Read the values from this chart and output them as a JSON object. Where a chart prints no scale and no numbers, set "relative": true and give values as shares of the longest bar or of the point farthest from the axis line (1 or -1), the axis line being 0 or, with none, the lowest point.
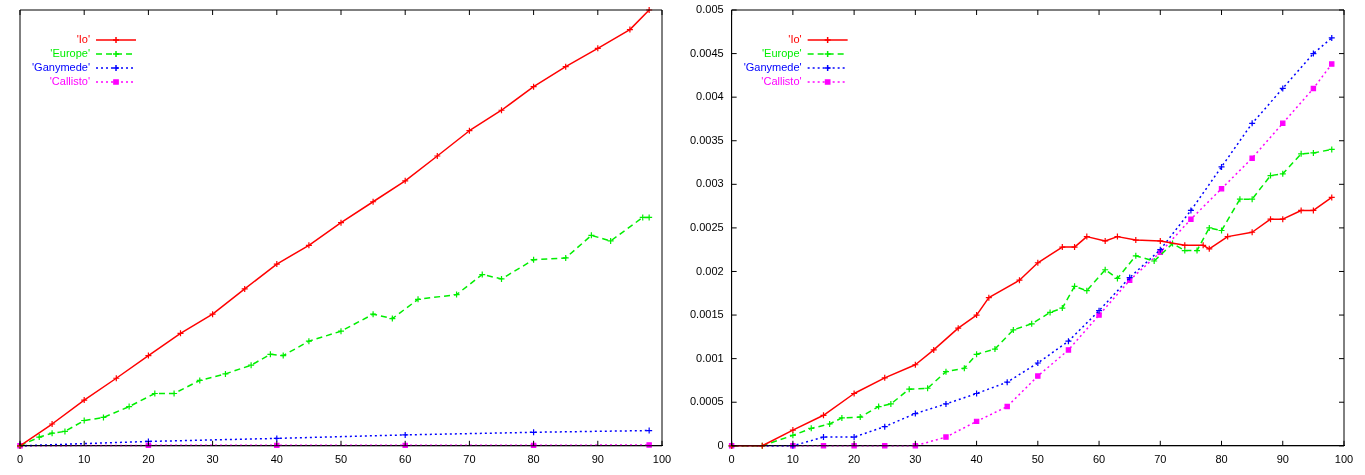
{
  "chart_data": [
    {
      "type": "line",
      "relative": true,
      "tick_labels": "x",
      "xlim": [
        0,
        100
      ],
      "xticks": [
        0,
        10,
        20,
        30,
        40,
        50,
        60,
        70,
        80,
        90,
        100
      ],
      "legend": "top left",
      "series": [
        {
          "name": "'Io'",
          "color": "#ff0000",
          "marker": "cross",
          "line_style": "solid",
          "x": [
            0,
            5,
            10,
            15,
            20,
            25,
            30,
            35,
            40,
            45,
            50,
            55,
            60,
            65,
            70,
            75,
            80,
            85,
            90,
            95,
            98
          ],
          "values": [
            0,
            0.05,
            0.105,
            0.155,
            0.207,
            0.258,
            0.302,
            0.36,
            0.417,
            0.46,
            0.512,
            0.56,
            0.608,
            0.665,
            0.723,
            0.77,
            0.824,
            0.87,
            0.912,
            0.955,
            1
          ]
        },
        {
          "name": "'Europe'",
          "color": "#00ee00",
          "marker": "cross",
          "line_style": "dashed",
          "x": [
            0,
            3,
            5,
            7,
            10,
            13,
            17,
            21,
            24,
            28,
            32,
            36,
            39,
            41,
            45,
            50,
            55,
            58,
            62,
            68,
            72,
            75,
            80,
            85,
            89,
            92,
            97,
            98
          ],
          "values": [
            0,
            0.02,
            0.029,
            0.033,
            0.058,
            0.065,
            0.09,
            0.12,
            0.12,
            0.15,
            0.165,
            0.185,
            0.21,
            0.207,
            0.24,
            0.263,
            0.302,
            0.292,
            0.336,
            0.347,
            0.393,
            0.383,
            0.427,
            0.431,
            0.483,
            0.47,
            0.524,
            0.524
          ]
        },
        {
          "name": "'Ganymede'",
          "color": "#0000ff",
          "marker": "cross",
          "line_style": "dotted",
          "x": [
            0,
            20,
            40,
            60,
            80,
            98
          ],
          "values": [
            0,
            0.01,
            0.017,
            0.025,
            0.031,
            0.035
          ]
        },
        {
          "name": "'Callisto'",
          "color": "#ff00ff",
          "marker": "square",
          "line_style": "dotted",
          "x": [
            0,
            20,
            40,
            60,
            80,
            98
          ],
          "values": [
            0,
            0.001,
            0.001,
            0.001,
            0.001,
            0.002
          ]
        }
      ]
    },
    {
      "type": "line",
      "xlim": [
        0,
        100
      ],
      "xticks": [
        0,
        10,
        20,
        30,
        40,
        50,
        60,
        70,
        80,
        90,
        100
      ],
      "ylim": [
        0,
        0.005
      ],
      "yticks": [
        0,
        0.0005,
        0.001,
        0.0015,
        0.002,
        0.0025,
        0.003,
        0.0035,
        0.004,
        0.0045,
        0.005
      ],
      "legend": "top left",
      "series": [
        {
          "name": "'Io'",
          "color": "#ff0000",
          "marker": "cross",
          "line_style": "solid",
          "x": [
            0,
            5,
            10,
            15,
            20,
            25,
            30,
            33,
            37,
            40,
            42,
            47,
            50,
            54,
            56,
            58,
            61,
            63,
            66,
            70,
            74,
            77,
            78,
            81,
            85,
            88,
            90,
            93,
            95,
            98
          ],
          "values": [
            0,
            0,
            0.00018,
            0.00035,
            0.0006,
            0.00078,
            0.00093,
            0.0011,
            0.00135,
            0.0015,
            0.0017,
            0.0019,
            0.0021,
            0.00228,
            0.00228,
            0.0024,
            0.00235,
            0.0024,
            0.00236,
            0.00235,
            0.0023,
            0.0023,
            0.00226,
            0.0024,
            0.00245,
            0.0026,
            0.0026,
            0.0027,
            0.0027,
            0.00285
          ]
        },
        {
          "name": "'Europe'",
          "color": "#00ee00",
          "marker": "cross",
          "line_style": "dashed",
          "x": [
            0,
            5,
            10,
            13,
            16,
            18,
            21,
            24,
            26,
            29,
            32,
            35,
            38,
            40,
            43,
            46,
            49,
            52,
            54,
            56,
            58,
            61,
            63,
            66,
            69,
            72,
            74,
            76,
            78,
            80,
            83,
            85,
            88,
            90,
            93,
            95,
            98
          ],
          "values": [
            0,
            0,
            0.00012,
            0.0002,
            0.00025,
            0.00032,
            0.00033,
            0.00045,
            0.00048,
            0.00065,
            0.00066,
            0.00085,
            0.00089,
            0.00105,
            0.00111,
            0.00133,
            0.0014,
            0.00153,
            0.00158,
            0.00183,
            0.00178,
            0.00202,
            0.00192,
            0.00218,
            0.00212,
            0.00232,
            0.00224,
            0.00224,
            0.0025,
            0.00247,
            0.00283,
            0.00283,
            0.0031,
            0.00312,
            0.00335,
            0.00336,
            0.0034
          ]
        },
        {
          "name": "'Ganymede'",
          "color": "#0000ff",
          "marker": "cross",
          "line_style": "dotted",
          "x": [
            0,
            10,
            15,
            20,
            25,
            30,
            35,
            40,
            45,
            50,
            55,
            60,
            65,
            70,
            75,
            80,
            85,
            90,
            95,
            98
          ],
          "values": [
            0,
            0,
            0.0001,
            0.0001,
            0.00022,
            0.00037,
            0.00048,
            0.0006,
            0.00073,
            0.00095,
            0.0012,
            0.00155,
            0.00193,
            0.00225,
            0.0027,
            0.0032,
            0.0037,
            0.0041,
            0.0045,
            0.00468
          ]
        },
        {
          "name": "'Callisto'",
          "color": "#ff00ff",
          "marker": "square",
          "line_style": "dotted",
          "x": [
            0,
            10,
            15,
            20,
            25,
            30,
            35,
            40,
            45,
            50,
            55,
            60,
            65,
            70,
            75,
            80,
            85,
            90,
            95,
            98
          ],
          "values": [
            0,
            0,
            0,
            0,
            0,
            0,
            0.0001,
            0.00028,
            0.00045,
            0.0008,
            0.0011,
            0.0015,
            0.0019,
            0.00222,
            0.0026,
            0.00295,
            0.0033,
            0.0037,
            0.0041,
            0.00438
          ]
        }
      ]
    }
  ]
}
